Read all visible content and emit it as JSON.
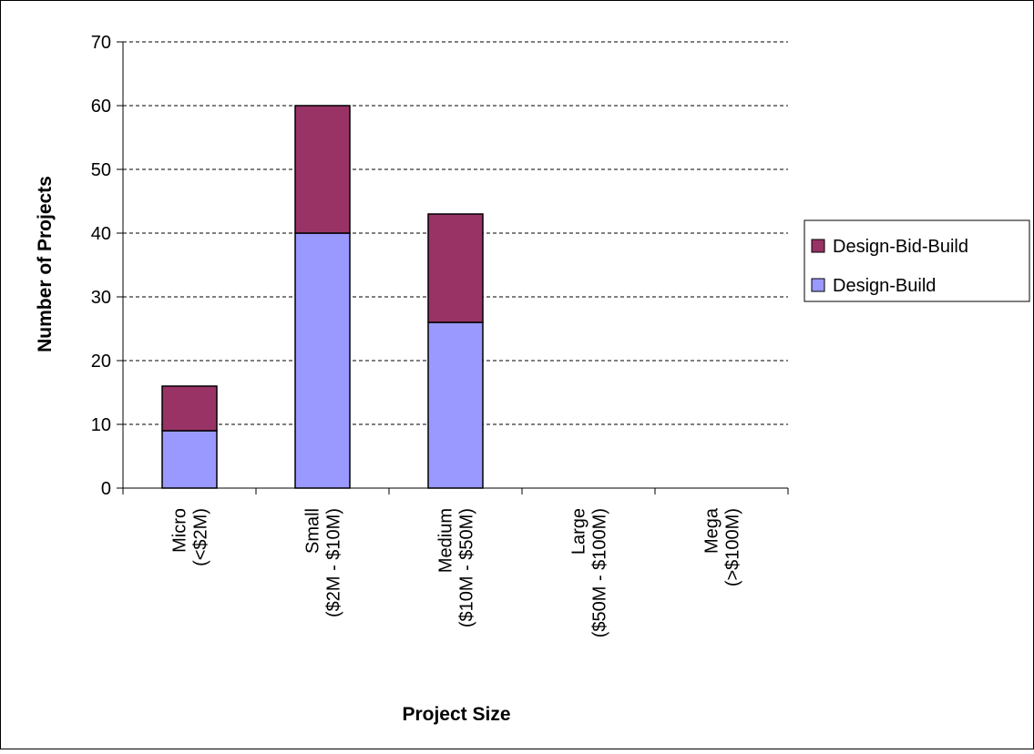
{
  "chart_data": {
    "type": "bar",
    "stacked": true,
    "categories": [
      [
        "Micro",
        "(<$2M)"
      ],
      [
        "Small",
        "($2M - $10M)"
      ],
      [
        "Medium",
        "($10M - $50M)"
      ],
      [
        "Large",
        "($50M - $100M)"
      ],
      [
        "Mega",
        "(>$100M)"
      ]
    ],
    "series": [
      {
        "name": "Design-Build",
        "values": [
          9,
          40,
          26,
          0,
          0
        ],
        "color": "#9999ff"
      },
      {
        "name": "Design-Bid-Build",
        "values": [
          7,
          20,
          17,
          0,
          0
        ],
        "color": "#993366"
      }
    ],
    "xlabel": "Project Size",
    "ylabel": "Number of Projects",
    "ylim": [
      0,
      70
    ],
    "yticks": [
      "0",
      "10",
      "20",
      "30",
      "40",
      "50",
      "60",
      "70"
    ],
    "grid": "dashed horizontal",
    "legend": {
      "placement": "right",
      "order": [
        "Design-Bid-Build",
        "Design-Build"
      ]
    }
  }
}
